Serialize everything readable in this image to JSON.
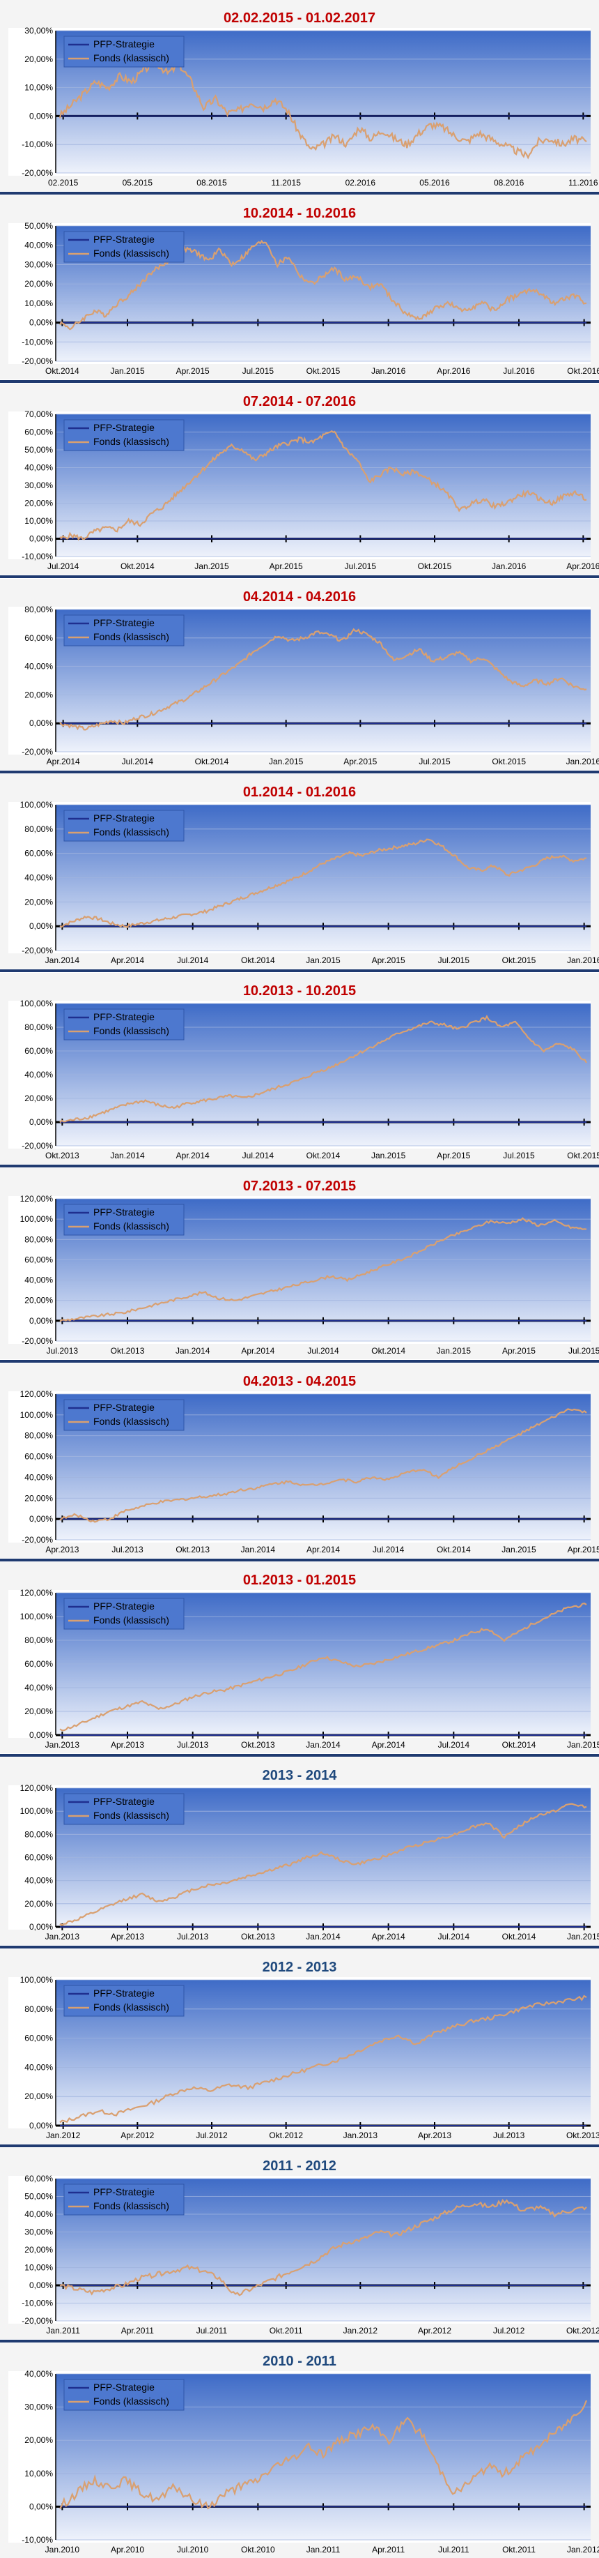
{
  "colors": {
    "title_red": "#c00000",
    "title_blue": "#1f497d",
    "strategy_line": "#1f2f8f",
    "fund_line": "#d9a071",
    "axis_line": "#000000",
    "plot_bg_top": "#3e6bc7",
    "plot_bg_bottom": "#eef2fb",
    "separator": "#1f3a70"
  },
  "legend": {
    "strategy": "PFP-Strategie",
    "fund": "Fonds (klassisch)"
  },
  "chart_data": [
    {
      "type": "line",
      "title": "02.02.2015 - 01.02.2017",
      "title_color": "red",
      "xlabels": [
        "02.2015",
        "05.2015",
        "08.2015",
        "11.2015",
        "02.2016",
        "05.2016",
        "08.2016",
        "11.2016"
      ],
      "yticks": [
        "30,00%",
        "20,00%",
        "10,00%",
        "0,00%",
        "-10,00%",
        "-20,00%"
      ],
      "ylim": [
        -20,
        30
      ],
      "series": [
        {
          "name": "PFP-Strategie",
          "values": [
            0,
            0
          ]
        },
        {
          "name": "Fonds (klassisch)",
          "values": [
            0,
            4,
            8,
            12,
            10,
            14,
            12,
            16,
            19,
            15,
            18,
            12,
            3,
            6,
            1,
            2,
            5,
            3,
            6,
            2,
            -6,
            -12,
            -10,
            -7,
            -10,
            -4,
            -8,
            -5,
            -8,
            -10,
            -6,
            -3,
            -4,
            -7,
            -9,
            -6,
            -8,
            -10,
            -12,
            -14,
            -9,
            -8,
            -10,
            -8,
            -9
          ]
        }
      ]
    },
    {
      "type": "line",
      "title": "10.2014 - 10.2016",
      "title_color": "red",
      "xlabels": [
        "Okt.2014",
        "Jan.2015",
        "Apr.2015",
        "Jul.2015",
        "Okt.2015",
        "Jan.2016",
        "Apr.2016",
        "Jul.2016",
        "Okt.2016"
      ],
      "yticks": [
        "50,00%",
        "40,00%",
        "30,00%",
        "20,00%",
        "10,00%",
        "0,00%",
        "-10,00%",
        "-20,00%"
      ],
      "ylim": [
        -20,
        50
      ],
      "series": [
        {
          "name": "PFP-Strategie",
          "values": [
            0,
            0
          ]
        },
        {
          "name": "Fonds (klassisch)",
          "values": [
            0,
            -3,
            2,
            6,
            4,
            10,
            14,
            20,
            26,
            30,
            34,
            38,
            36,
            32,
            38,
            30,
            34,
            40,
            42,
            30,
            34,
            24,
            20,
            24,
            28,
            22,
            24,
            18,
            20,
            12,
            6,
            2,
            4,
            8,
            10,
            6,
            8,
            10,
            6,
            12,
            14,
            17,
            15,
            10,
            12,
            14,
            10
          ]
        }
      ]
    },
    {
      "type": "line",
      "title": "07.2014 - 07.2016",
      "title_color": "red",
      "xlabels": [
        "Jul.2014",
        "Okt.2014",
        "Jan.2015",
        "Apr.2015",
        "Jul.2015",
        "Okt.2015",
        "Jan.2016",
        "Apr.2016"
      ],
      "yticks": [
        "70,00%",
        "60,00%",
        "50,00%",
        "40,00%",
        "30,00%",
        "20,00%",
        "10,00%",
        "0,00%",
        "-10,00%"
      ],
      "ylim": [
        -10,
        70
      ],
      "series": [
        {
          "name": "PFP-Strategie",
          "values": [
            0,
            0
          ]
        },
        {
          "name": "Fonds (klassisch)",
          "values": [
            0,
            2,
            0,
            4,
            6,
            5,
            10,
            8,
            14,
            18,
            24,
            30,
            36,
            42,
            48,
            52,
            50,
            44,
            48,
            52,
            54,
            56,
            54,
            58,
            60,
            50,
            44,
            32,
            36,
            40,
            36,
            38,
            34,
            30,
            24,
            16,
            20,
            22,
            18,
            20,
            24,
            26,
            22,
            20,
            24,
            26,
            22
          ]
        }
      ]
    },
    {
      "type": "line",
      "title": "04.2014 - 04.2016",
      "title_color": "red",
      "xlabels": [
        "Apr.2014",
        "Jul.2014",
        "Okt.2014",
        "Jan.2015",
        "Apr.2015",
        "Jul.2015",
        "Okt.2015",
        "Jan.2016"
      ],
      "yticks": [
        "80,00%",
        "60,00%",
        "40,00%",
        "20,00%",
        "0,00%",
        "-20,00%"
      ],
      "ylim": [
        -20,
        80
      ],
      "series": [
        {
          "name": "PFP-Strategie",
          "values": [
            0,
            0
          ]
        },
        {
          "name": "Fonds (klassisch)",
          "values": [
            0,
            -2,
            -4,
            -1,
            2,
            0,
            4,
            6,
            10,
            14,
            18,
            24,
            30,
            36,
            42,
            50,
            56,
            62,
            58,
            60,
            64,
            62,
            58,
            66,
            62,
            56,
            44,
            48,
            52,
            44,
            46,
            50,
            44,
            46,
            38,
            30,
            26,
            30,
            28,
            32,
            26,
            24
          ]
        }
      ]
    },
    {
      "type": "line",
      "title": "01.2014 - 01.2016",
      "title_color": "red",
      "xlabels": [
        "Jan.2014",
        "Apr.2014",
        "Jul.2014",
        "Okt.2014",
        "Jan.2015",
        "Apr.2015",
        "Jul.2015",
        "Okt.2015",
        "Jan.2016"
      ],
      "yticks": [
        "100,00%",
        "80,00%",
        "60,00%",
        "40,00%",
        "20,00%",
        "0,00%",
        "-20,00%"
      ],
      "ylim": [
        -20,
        100
      ],
      "series": [
        {
          "name": "PFP-Strategie",
          "values": [
            0,
            0
          ]
        },
        {
          "name": "Fonds (klassisch)",
          "values": [
            0,
            4,
            8,
            6,
            2,
            0,
            2,
            4,
            6,
            8,
            10,
            12,
            16,
            20,
            24,
            28,
            32,
            36,
            40,
            46,
            52,
            56,
            60,
            58,
            62,
            64,
            66,
            68,
            72,
            66,
            58,
            48,
            46,
            50,
            42,
            46,
            50,
            56,
            58,
            54,
            56
          ]
        }
      ]
    },
    {
      "type": "line",
      "title": "10.2013 - 10.2015",
      "title_color": "red",
      "xlabels": [
        "Okt.2013",
        "Jan.2014",
        "Apr.2014",
        "Jul.2014",
        "Okt.2014",
        "Jan.2015",
        "Apr.2015",
        "Jul.2015",
        "Okt.2015"
      ],
      "yticks": [
        "100,00%",
        "80,00%",
        "60,00%",
        "40,00%",
        "20,00%",
        "0,00%",
        "-20,00%"
      ],
      "ylim": [
        -20,
        100
      ],
      "series": [
        {
          "name": "PFP-Strategie",
          "values": [
            0,
            0
          ]
        },
        {
          "name": "Fonds (klassisch)",
          "values": [
            0,
            2,
            4,
            8,
            12,
            16,
            18,
            14,
            12,
            16,
            18,
            20,
            22,
            20,
            24,
            28,
            32,
            36,
            42,
            46,
            52,
            58,
            64,
            70,
            76,
            80,
            84,
            82,
            78,
            84,
            88,
            80,
            84,
            70,
            60,
            66,
            62,
            50
          ]
        }
      ]
    },
    {
      "type": "line",
      "title": "07.2013 - 07.2015",
      "title_color": "red",
      "xlabels": [
        "Jul.2013",
        "Okt.2013",
        "Jan.2014",
        "Apr.2014",
        "Jul.2014",
        "Okt.2014",
        "Jan.2015",
        "Apr.2015",
        "Jul.2015"
      ],
      "yticks": [
        "120,00%",
        "100,00%",
        "80,00%",
        "60,00%",
        "40,00%",
        "20,00%",
        "0,00%",
        "-20,00%"
      ],
      "ylim": [
        -20,
        120
      ],
      "series": [
        {
          "name": "PFP-Strategie",
          "values": [
            0,
            0
          ]
        },
        {
          "name": "Fonds (klassisch)",
          "values": [
            0,
            2,
            4,
            6,
            8,
            12,
            16,
            20,
            24,
            28,
            22,
            20,
            24,
            28,
            32,
            36,
            40,
            44,
            40,
            46,
            52,
            58,
            64,
            72,
            80,
            86,
            92,
            98,
            96,
            100,
            94,
            98,
            92,
            90
          ]
        }
      ]
    },
    {
      "type": "line",
      "title": "04.2013 - 04.2015",
      "title_color": "red",
      "xlabels": [
        "Apr.2013",
        "Jul.2013",
        "Okt.2013",
        "Jan.2014",
        "Apr.2014",
        "Jul.2014",
        "Okt.2014",
        "Jan.2015",
        "Apr.2015"
      ],
      "yticks": [
        "120,00%",
        "100,00%",
        "80,00%",
        "60,00%",
        "40,00%",
        "20,00%",
        "0,00%",
        "-20,00%"
      ],
      "ylim": [
        -20,
        120
      ],
      "series": [
        {
          "name": "PFP-Strategie",
          "values": [
            0,
            0
          ]
        },
        {
          "name": "Fonds (klassisch)",
          "values": [
            0,
            4,
            -2,
            0,
            8,
            12,
            16,
            18,
            20,
            22,
            24,
            28,
            30,
            34,
            36,
            32,
            34,
            38,
            36,
            40,
            38,
            44,
            48,
            40,
            50,
            58,
            66,
            74,
            82,
            90,
            98,
            106,
            102
          ]
        }
      ]
    },
    {
      "type": "line",
      "title": "01.2013 - 01.2015",
      "title_color": "red",
      "xlabels": [
        "Jan.2013",
        "Apr.2013",
        "Jul.2013",
        "Okt.2013",
        "Jan.2014",
        "Apr.2014",
        "Jul.2014",
        "Okt.2014",
        "Jan.2015"
      ],
      "yticks": [
        "120,00%",
        "100,00%",
        "80,00%",
        "60,00%",
        "40,00%",
        "20,00%",
        "0,00%"
      ],
      "ylim": [
        0,
        120
      ],
      "series": [
        {
          "name": "PFP-Strategie",
          "values": [
            0,
            0
          ]
        },
        {
          "name": "Fonds (klassisch)",
          "values": [
            4,
            8,
            14,
            20,
            24,
            28,
            22,
            26,
            32,
            36,
            38,
            42,
            46,
            50,
            54,
            60,
            66,
            62,
            58,
            60,
            64,
            68,
            72,
            76,
            80,
            86,
            90,
            80,
            88,
            96,
            102,
            108,
            110
          ]
        }
      ]
    },
    {
      "type": "line",
      "title": "2013 - 2014",
      "title_color": "blue",
      "xlabels": [
        "Jan.2013",
        "Apr.2013",
        "Jul.2013",
        "Okt.2013",
        "Jan.2014",
        "Apr.2014",
        "Jul.2014",
        "Okt.2014",
        "Jan.2015"
      ],
      "yticks": [
        "120,00%",
        "100,00%",
        "80,00%",
        "60,00%",
        "40,00%",
        "20,00%",
        "0,00%"
      ],
      "ylim": [
        0,
        120
      ],
      "series": [
        {
          "name": "PFP-Strategie",
          "values": [
            0,
            0
          ]
        },
        {
          "name": "Fonds (klassisch)",
          "values": [
            2,
            6,
            12,
            18,
            24,
            28,
            22,
            26,
            32,
            36,
            38,
            42,
            46,
            50,
            54,
            60,
            64,
            58,
            54,
            58,
            62,
            68,
            72,
            76,
            80,
            86,
            90,
            78,
            88,
            96,
            100,
            106,
            104
          ]
        }
      ]
    },
    {
      "type": "line",
      "title": "2012 - 2013",
      "title_color": "blue",
      "xlabels": [
        "Jan.2012",
        "Apr.2012",
        "Jul.2012",
        "Okt.2012",
        "Jan.2013",
        "Apr.2013",
        "Jul.2013",
        "Okt.2013"
      ],
      "yticks": [
        "100,00%",
        "80,00%",
        "60,00%",
        "40,00%",
        "20,00%",
        "0,00%"
      ],
      "ylim": [
        0,
        100
      ],
      "series": [
        {
          "name": "PFP-Strategie",
          "values": [
            0,
            0
          ]
        },
        {
          "name": "Fonds (klassisch)",
          "values": [
            2,
            6,
            10,
            8,
            12,
            16,
            22,
            26,
            24,
            28,
            26,
            30,
            34,
            38,
            42,
            46,
            52,
            58,
            62,
            56,
            64,
            68,
            72,
            74,
            78,
            82,
            84,
            86,
            88
          ]
        }
      ]
    },
    {
      "type": "line",
      "title": "2011 - 2012",
      "title_color": "blue",
      "xlabels": [
        "Jan.2011",
        "Apr.2011",
        "Jul.2011",
        "Okt.2011",
        "Jan.2012",
        "Apr.2012",
        "Jul.2012",
        "Okt.2012"
      ],
      "yticks": [
        "60,00%",
        "50,00%",
        "40,00%",
        "30,00%",
        "20,00%",
        "10,00%",
        "0,00%",
        "-10,00%",
        "-20,00%"
      ],
      "ylim": [
        -20,
        60
      ],
      "series": [
        {
          "name": "PFP-Strategie",
          "values": [
            0,
            0
          ]
        },
        {
          "name": "Fonds (klassisch)",
          "values": [
            0,
            -2,
            -4,
            -2,
            0,
            4,
            6,
            8,
            10,
            8,
            4,
            -6,
            -2,
            2,
            6,
            10,
            14,
            20,
            24,
            26,
            30,
            28,
            32,
            36,
            40,
            44,
            46,
            44,
            48,
            42,
            44,
            40,
            42,
            44
          ]
        }
      ]
    },
    {
      "type": "line",
      "title": "2010 - 2011",
      "title_color": "blue",
      "xlabels": [
        "Jan.2010",
        "Apr.2010",
        "Jul.2010",
        "Okt.2010",
        "Jan.2011",
        "Apr.2011",
        "Jul.2011",
        "Okt.2011",
        "Jan.2012"
      ],
      "yticks": [
        "40,00%",
        "30,00%",
        "20,00%",
        "10,00%",
        "0,00%",
        "-10,00%"
      ],
      "ylim": [
        -10,
        40
      ],
      "series": [
        {
          "name": "PFP-Strategie",
          "values": [
            0,
            0
          ]
        },
        {
          "name": "Fonds (klassisch)",
          "values": [
            0,
            4,
            8,
            6,
            8,
            4,
            2,
            6,
            2,
            0,
            4,
            6,
            8,
            12,
            14,
            18,
            16,
            20,
            22,
            24,
            20,
            26,
            22,
            12,
            4,
            8,
            12,
            10,
            14,
            18,
            22,
            26,
            32
          ]
        }
      ]
    }
  ]
}
